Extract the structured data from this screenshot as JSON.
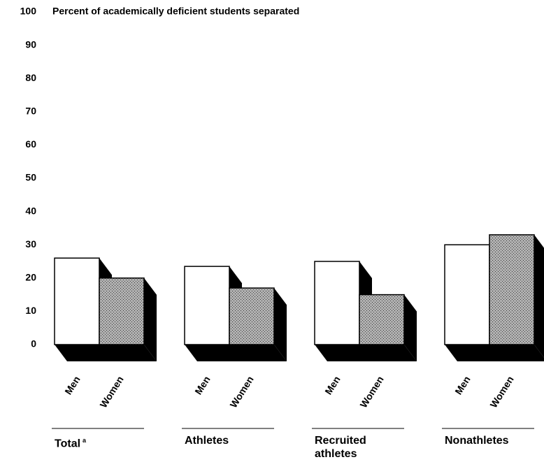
{
  "chart_data": {
    "type": "bar3d",
    "title": "Percent of academically deficient students separated",
    "categories": [
      "Total",
      "Athletes",
      "Recruited athletes",
      "Nonathletes"
    ],
    "category_markers": [
      "a",
      null,
      null,
      null
    ],
    "series": [
      {
        "name": "Men",
        "color": "#ffffff",
        "values": [
          26,
          23.5,
          25,
          30
        ]
      },
      {
        "name": "Women",
        "color": "#8c8c8c",
        "values": [
          20,
          17,
          15,
          33
        ]
      }
    ],
    "ylim": [
      0,
      100
    ],
    "yticks": [
      0,
      10,
      20,
      30,
      40,
      50,
      60,
      70,
      80,
      90,
      100
    ],
    "grid": false
  }
}
